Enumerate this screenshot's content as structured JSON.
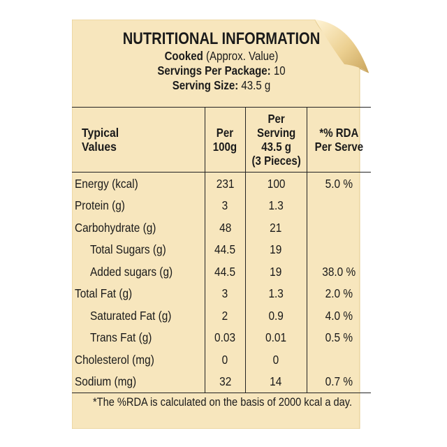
{
  "header": {
    "title": "NUTRITIONAL INFORMATION",
    "cooked_label": "Cooked",
    "cooked_note": "(Approx. Value)",
    "servings_label": "Servings Per Package:",
    "servings_value": "10",
    "serving_size_label": "Serving Size:",
    "serving_size_value": "43.5 g"
  },
  "table": {
    "columns": {
      "c1_line1": "Typical",
      "c1_line2": "Values",
      "c2_line1": "Per",
      "c2_line2": "100g",
      "c3_line1": "Per Serving",
      "c3_line2": "43.5 g",
      "c3_line3": "(3 Pieces)",
      "c4_line1": "*% RDA",
      "c4_line2": "Per Serve"
    },
    "rows": [
      {
        "label": "Energy (kcal)",
        "per100": "231",
        "perServing": "100",
        "rda": "5.0 %"
      },
      {
        "label": "Protein (g)",
        "per100": "3",
        "perServing": "1.3",
        "rda": ""
      },
      {
        "label": "Carbohydrate (g)",
        "per100": "48",
        "perServing": "21",
        "rda": ""
      },
      {
        "label": "Total Sugars (g)",
        "per100": "44.5",
        "perServing": "19",
        "rda": ""
      },
      {
        "label": "Added sugars (g)",
        "per100": "44.5",
        "perServing": "19",
        "rda": "38.0 %"
      },
      {
        "label": "Total Fat (g)",
        "per100": "3",
        "perServing": "1.3",
        "rda": "2.0 %"
      },
      {
        "label": "Saturated Fat (g)",
        "per100": "2",
        "perServing": "0.9",
        "rda": "4.0 %"
      },
      {
        "label": "Trans Fat (g)",
        "per100": "0.03",
        "perServing": "0.01",
        "rda": "0.5 %"
      },
      {
        "label": "Cholesterol (mg)",
        "per100": "0",
        "perServing": "0",
        "rda": ""
      },
      {
        "label": "Sodium (mg)",
        "per100": "32",
        "perServing": "14",
        "rda": "0.7 %"
      }
    ]
  },
  "footnote": "*The %RDA is calculated on the basis of 2000 kcal a day.",
  "colors": {
    "card": "#f7e6bd",
    "card_edge": "#d9b978",
    "curl": "#f0d798",
    "text": "#1a1a1a"
  }
}
